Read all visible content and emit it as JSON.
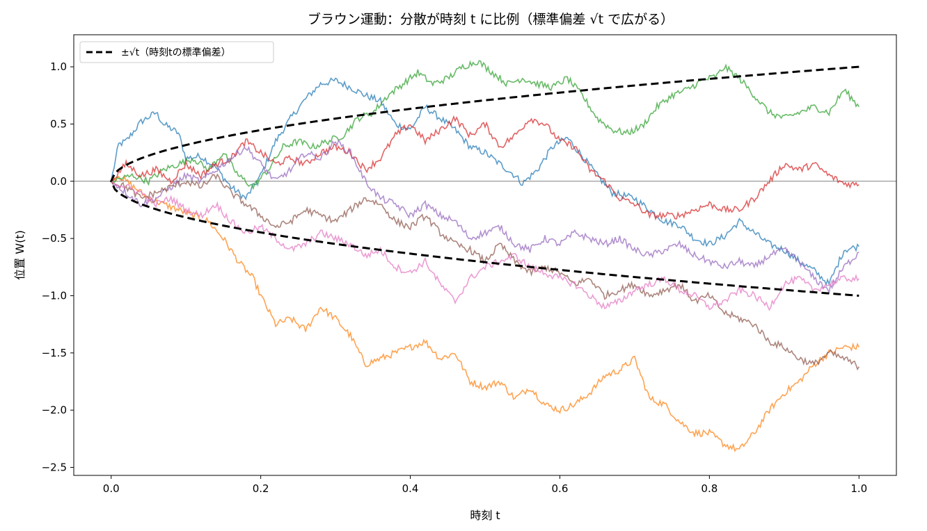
{
  "chart_data": {
    "type": "line",
    "title": "ブラウン運動：分散が時刻 t に比例（標準偏差 √t で広がる）",
    "xlabel": "時刻 t",
    "ylabel": "位置 W(t)",
    "xlim": [
      -0.05,
      1.05
    ],
    "ylim": [
      -2.57,
      1.28
    ],
    "xticks": [
      "0.0",
      "0.2",
      "0.4",
      "0.6",
      "0.8",
      "1.0"
    ],
    "yticks": [
      "−2.5",
      "−2.0",
      "−1.5",
      "−1.0",
      "−0.5",
      "0.0",
      "0.5",
      "1.0"
    ],
    "grid": false,
    "legend": {
      "placement": "top-left",
      "entries": [
        "±√t（時刻tの標準偏差）"
      ]
    },
    "zero_line": {
      "y": 0.0,
      "color": "#808080"
    },
    "envelope": {
      "label": "±√t（時刻tの標準偏差）",
      "color": "#000000",
      "style": "dashed",
      "formula": "±sqrt(t)"
    },
    "series": [
      {
        "color": "#1f77b4",
        "x": [
          0,
          0.01,
          0.02,
          0.04,
          0.06,
          0.07,
          0.09,
          0.1,
          0.12,
          0.14,
          0.16,
          0.18,
          0.2,
          0.22,
          0.24,
          0.26,
          0.28,
          0.3,
          0.32,
          0.34,
          0.36,
          0.38,
          0.4,
          0.42,
          0.44,
          0.46,
          0.48,
          0.5,
          0.52,
          0.54,
          0.55,
          0.57,
          0.59,
          0.61,
          0.63,
          0.65,
          0.67,
          0.7,
          0.72,
          0.74,
          0.76,
          0.78,
          0.8,
          0.82,
          0.84,
          0.86,
          0.88,
          0.9,
          0.92,
          0.94,
          0.96,
          0.98,
          1.0
        ],
        "y": [
          0,
          0.32,
          0.35,
          0.52,
          0.6,
          0.5,
          0.42,
          0.2,
          0.22,
          0.12,
          -0.05,
          -0.15,
          0.05,
          0.35,
          0.55,
          0.72,
          0.85,
          0.88,
          0.82,
          0.75,
          0.7,
          0.5,
          0.45,
          0.65,
          0.55,
          0.45,
          0.3,
          0.25,
          0.15,
          0.05,
          -0.02,
          0.1,
          0.3,
          0.38,
          0.22,
          0.05,
          -0.1,
          -0.15,
          -0.25,
          -0.35,
          -0.38,
          -0.5,
          -0.55,
          -0.48,
          -0.35,
          -0.45,
          -0.55,
          -0.6,
          -0.7,
          -0.78,
          -0.9,
          -0.6,
          -0.57
        ]
      },
      {
        "color": "#ff7f0e",
        "x": [
          0,
          0.01,
          0.03,
          0.05,
          0.07,
          0.09,
          0.11,
          0.13,
          0.15,
          0.17,
          0.19,
          0.2,
          0.22,
          0.24,
          0.26,
          0.28,
          0.3,
          0.32,
          0.34,
          0.36,
          0.38,
          0.4,
          0.42,
          0.44,
          0.46,
          0.48,
          0.5,
          0.52,
          0.54,
          0.56,
          0.58,
          0.6,
          0.62,
          0.64,
          0.66,
          0.68,
          0.7,
          0.72,
          0.74,
          0.76,
          0.78,
          0.8,
          0.82,
          0.84,
          0.86,
          0.88,
          0.9,
          0.92,
          0.94,
          0.96,
          0.98,
          1.0
        ],
        "y": [
          0,
          0.05,
          -0.05,
          -0.15,
          -0.2,
          -0.25,
          -0.3,
          -0.35,
          -0.5,
          -0.7,
          -0.85,
          -1.0,
          -1.25,
          -1.2,
          -1.3,
          -1.1,
          -1.2,
          -1.35,
          -1.6,
          -1.55,
          -1.5,
          -1.45,
          -1.4,
          -1.55,
          -1.5,
          -1.75,
          -1.8,
          -1.75,
          -1.9,
          -1.8,
          -1.95,
          -2.0,
          -1.95,
          -1.85,
          -1.7,
          -1.65,
          -1.55,
          -1.9,
          -1.95,
          -2.1,
          -2.2,
          -2.2,
          -2.3,
          -2.35,
          -2.2,
          -2.0,
          -1.85,
          -1.75,
          -1.6,
          -1.5,
          -1.45,
          -1.45
        ]
      },
      {
        "color": "#2ca02c",
        "x": [
          0,
          0.01,
          0.03,
          0.05,
          0.07,
          0.09,
          0.11,
          0.13,
          0.15,
          0.17,
          0.19,
          0.21,
          0.23,
          0.25,
          0.27,
          0.29,
          0.31,
          0.33,
          0.35,
          0.37,
          0.39,
          0.41,
          0.43,
          0.45,
          0.47,
          0.49,
          0.51,
          0.53,
          0.55,
          0.57,
          0.59,
          0.61,
          0.63,
          0.65,
          0.67,
          0.69,
          0.71,
          0.73,
          0.75,
          0.77,
          0.79,
          0.81,
          0.82,
          0.84,
          0.86,
          0.88,
          0.9,
          0.92,
          0.94,
          0.96,
          0.98,
          1.0
        ],
        "y": [
          0,
          0.02,
          0.05,
          0.0,
          0.1,
          0.15,
          0.2,
          0.1,
          0.25,
          0.05,
          -0.05,
          0.1,
          0.3,
          0.35,
          0.3,
          0.35,
          0.4,
          0.55,
          0.6,
          0.75,
          0.85,
          0.95,
          0.85,
          0.9,
          1.0,
          1.05,
          0.95,
          0.85,
          0.9,
          0.85,
          0.82,
          0.9,
          0.75,
          0.55,
          0.45,
          0.42,
          0.48,
          0.65,
          0.75,
          0.8,
          0.88,
          0.92,
          1.0,
          0.9,
          0.75,
          0.6,
          0.55,
          0.6,
          0.65,
          0.6,
          0.8,
          0.65
        ]
      },
      {
        "color": "#d62728",
        "x": [
          0,
          0.02,
          0.04,
          0.06,
          0.08,
          0.1,
          0.12,
          0.14,
          0.16,
          0.18,
          0.2,
          0.22,
          0.24,
          0.26,
          0.28,
          0.3,
          0.32,
          0.34,
          0.36,
          0.38,
          0.4,
          0.42,
          0.44,
          0.46,
          0.48,
          0.5,
          0.52,
          0.54,
          0.56,
          0.58,
          0.6,
          0.62,
          0.64,
          0.66,
          0.68,
          0.7,
          0.72,
          0.74,
          0.76,
          0.78,
          0.8,
          0.82,
          0.84,
          0.86,
          0.88,
          0.9,
          0.92,
          0.94,
          0.96,
          0.98,
          1.0
        ],
        "y": [
          0,
          0.15,
          0.05,
          0.1,
          0.0,
          0.15,
          0.05,
          0.15,
          0.2,
          0.35,
          0.25,
          0.15,
          0.2,
          0.15,
          0.25,
          0.3,
          0.25,
          0.1,
          0.2,
          0.4,
          0.5,
          0.35,
          0.45,
          0.55,
          0.4,
          0.5,
          0.3,
          0.4,
          0.55,
          0.5,
          0.35,
          0.3,
          0.1,
          0.0,
          -0.15,
          -0.2,
          -0.3,
          -0.3,
          -0.3,
          -0.25,
          -0.2,
          -0.25,
          -0.25,
          -0.15,
          0.0,
          0.15,
          0.1,
          0.15,
          0.05,
          -0.02,
          -0.03
        ]
      },
      {
        "color": "#9467bd",
        "x": [
          0,
          0.02,
          0.04,
          0.06,
          0.08,
          0.1,
          0.12,
          0.14,
          0.16,
          0.18,
          0.2,
          0.22,
          0.24,
          0.26,
          0.28,
          0.3,
          0.32,
          0.34,
          0.36,
          0.38,
          0.4,
          0.42,
          0.44,
          0.46,
          0.48,
          0.5,
          0.52,
          0.54,
          0.56,
          0.58,
          0.6,
          0.62,
          0.64,
          0.66,
          0.68,
          0.7,
          0.72,
          0.74,
          0.76,
          0.78,
          0.8,
          0.82,
          0.84,
          0.86,
          0.88,
          0.9,
          0.92,
          0.94,
          0.96,
          0.98,
          1.0
        ],
        "y": [
          0,
          -0.1,
          -0.2,
          -0.15,
          -0.05,
          0.05,
          0.0,
          0.1,
          0.2,
          0.3,
          0.15,
          0.0,
          0.1,
          0.25,
          0.2,
          0.35,
          0.25,
          0.0,
          -0.15,
          -0.2,
          -0.3,
          -0.2,
          -0.3,
          -0.35,
          -0.5,
          -0.45,
          -0.4,
          -0.55,
          -0.6,
          -0.5,
          -0.55,
          -0.45,
          -0.5,
          -0.55,
          -0.5,
          -0.6,
          -0.65,
          -0.6,
          -0.55,
          -0.65,
          -0.7,
          -0.75,
          -0.7,
          -0.75,
          -0.65,
          -0.6,
          -0.7,
          -0.85,
          -0.95,
          -0.75,
          -0.62
        ]
      },
      {
        "color": "#8c564b",
        "x": [
          0,
          0.02,
          0.04,
          0.06,
          0.08,
          0.1,
          0.12,
          0.14,
          0.16,
          0.18,
          0.2,
          0.22,
          0.24,
          0.26,
          0.28,
          0.3,
          0.32,
          0.34,
          0.36,
          0.38,
          0.4,
          0.42,
          0.44,
          0.46,
          0.48,
          0.5,
          0.52,
          0.54,
          0.56,
          0.58,
          0.6,
          0.62,
          0.64,
          0.66,
          0.68,
          0.7,
          0.72,
          0.74,
          0.76,
          0.78,
          0.8,
          0.82,
          0.84,
          0.86,
          0.88,
          0.9,
          0.92,
          0.94,
          0.96,
          0.98,
          1.0
        ],
        "y": [
          0,
          -0.05,
          -0.15,
          -0.1,
          -0.05,
          0.0,
          -0.05,
          0.05,
          -0.1,
          -0.2,
          -0.3,
          -0.4,
          -0.35,
          -0.25,
          -0.3,
          -0.35,
          -0.25,
          -0.15,
          -0.2,
          -0.35,
          -0.4,
          -0.3,
          -0.45,
          -0.55,
          -0.6,
          -0.7,
          -0.55,
          -0.7,
          -0.8,
          -0.75,
          -0.8,
          -0.9,
          -0.85,
          -1.0,
          -0.95,
          -0.9,
          -1.0,
          -0.95,
          -0.9,
          -1.05,
          -1.0,
          -1.15,
          -1.2,
          -1.25,
          -1.4,
          -1.45,
          -1.55,
          -1.6,
          -1.5,
          -1.55,
          -1.62
        ]
      },
      {
        "color": "#e377c2",
        "x": [
          0,
          0.02,
          0.04,
          0.06,
          0.08,
          0.1,
          0.12,
          0.14,
          0.16,
          0.18,
          0.2,
          0.22,
          0.24,
          0.26,
          0.28,
          0.3,
          0.32,
          0.34,
          0.36,
          0.38,
          0.4,
          0.42,
          0.44,
          0.46,
          0.48,
          0.5,
          0.52,
          0.54,
          0.56,
          0.58,
          0.6,
          0.62,
          0.64,
          0.66,
          0.68,
          0.7,
          0.72,
          0.74,
          0.76,
          0.78,
          0.8,
          0.82,
          0.84,
          0.86,
          0.88,
          0.9,
          0.92,
          0.94,
          0.96,
          0.98,
          1.0
        ],
        "y": [
          0,
          -0.05,
          -0.1,
          -0.2,
          -0.15,
          -0.25,
          -0.3,
          -0.2,
          -0.35,
          -0.45,
          -0.4,
          -0.5,
          -0.6,
          -0.55,
          -0.45,
          -0.5,
          -0.55,
          -0.65,
          -0.6,
          -0.75,
          -0.8,
          -0.7,
          -0.9,
          -1.05,
          -0.85,
          -0.75,
          -0.7,
          -0.65,
          -0.75,
          -0.8,
          -0.85,
          -0.9,
          -1.0,
          -1.1,
          -1.05,
          -0.95,
          -0.9,
          -0.85,
          -0.95,
          -1.0,
          -1.1,
          -1.05,
          -0.95,
          -1.0,
          -1.1,
          -0.9,
          -0.85,
          -0.95,
          -0.9,
          -0.85,
          -0.85
        ]
      }
    ]
  }
}
